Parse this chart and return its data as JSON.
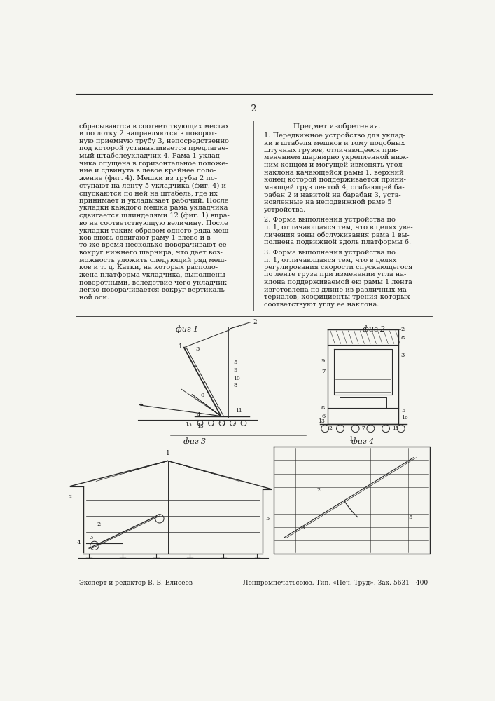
{
  "page_number": "2",
  "left_column_text": [
    "сбрасываются в соответствующих местах",
    "и по лотку 2 направляются в поворот-",
    "ную приемную трубу 3, непосредственно",
    "под которой устанавливается предлагае-",
    "мый штабелеукладчик 4. Рама 1 уклад-",
    "чика опущена в горизонтальное положе-",
    "ние и сдвинута в левое крайнее поло-",
    "жение (фиг. 4). Мешки из трубы 2 по-",
    "ступают на ленту 5 укладчика (фиг. 4) и",
    "спускаются по ней на штабель, где их",
    "принимает и укладывает рабочий. После",
    "укладки каждого мешка рама укладчика",
    "сдвигается шлинделями 12 (фиг. 1) впра-",
    "во на соответствующую величину. После",
    "укладки таким образом одного ряда меш-",
    "ков вновь сдвигают раму 1 влево и в",
    "то же время несколько поворачивают ее",
    "вокруг нижнего шарнира, что дает воз-",
    "можность уложить следующий ряд меш-",
    "ков и т. д. Катки, на которых располо-",
    "жена платформа укладчика, выполнены",
    "поворотными, вследствие чего укладчик",
    "легко поворачивается вокруг вертикаль-",
    "ной оси."
  ],
  "right_column_title": "Предмет изобретения.",
  "right_col_p1": [
    "1. Передвижное устройство для уклад-",
    "ки в штабеля мешков и тому подобных",
    "штучных грузов, отличающееся при-",
    "менением шарнирно укрепленной ниж-",
    "ним концом и могущей изменять угол",
    "наклона качающейся рамы 1, верхний",
    "конец которой поддерживается прини-",
    "мающей груз лентой 4, огибающей ба-",
    "рабан 2 и навитой на барабан 3, уста-",
    "новленные на неподвижной раме 5",
    "устройства."
  ],
  "right_col_p2": [
    "2. Форма выполнения устройства по",
    "п. 1, отличающаяся тем, что в целях уве-",
    "личения зоны обслуживания рама 1 вы-",
    "полнена подвижной вдоль платформы 6."
  ],
  "right_col_p3": [
    "3. Форма выполнения устройства по",
    "п. 1, отличающаяся тем, что в целях",
    "регулирования скорости спускающегося",
    "по ленте груза при изменении угла на-",
    "клона поддерживаемой ею рамы 1 лента",
    "изготовлена по длине из различных ма-",
    "териалов, коэфициенты трения которых",
    "соответствуют углу ее наклона."
  ],
  "footer_left": "Эксперт и редактор В. В. Елисеев",
  "footer_right": "Ленпромпечатьсоюз. Тип. «Печ. Труд». Зак. 5631—400",
  "background_color": "#f5f5f0",
  "text_color": "#1a1a1a",
  "line_color": "#2a2a2a"
}
